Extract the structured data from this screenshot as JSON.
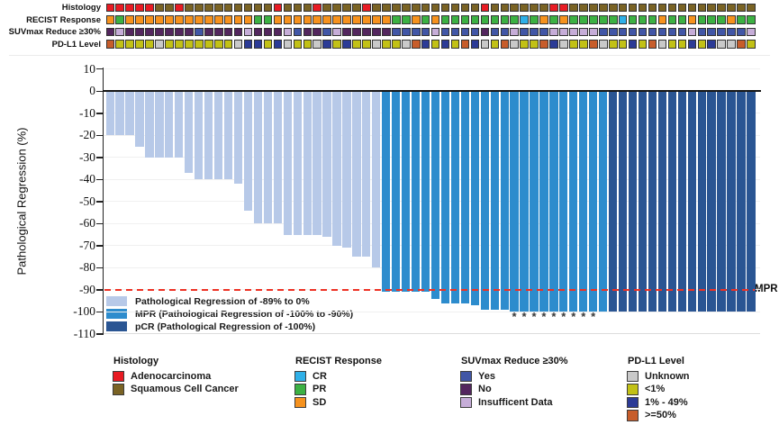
{
  "figure": {
    "y_axis": {
      "title": "Pathological Regression (%)",
      "ticks": [
        10,
        0,
        -10,
        -20,
        -30,
        -40,
        -50,
        -60,
        -70,
        -80,
        -90,
        -100,
        -110
      ]
    },
    "mpr_threshold": {
      "value": -90,
      "label": "MPR",
      "color": "#ee3124"
    }
  },
  "chart_data": {
    "type": "bar",
    "ylabel": "Pathological Regression (%)",
    "ylim": [
      -110,
      10
    ],
    "gridlines": true,
    "n_patients": 66,
    "values": [
      -20,
      -20,
      -20,
      -25,
      -30,
      -30,
      -30,
      -30,
      -37,
      -40,
      -40,
      -40,
      -40,
      -42,
      -54,
      -60,
      -60,
      -60,
      -65,
      -65,
      -65,
      -65,
      -66,
      -70,
      -71,
      -75,
      -75,
      -80,
      -91,
      -91,
      -91,
      -91,
      -91,
      -94,
      -96,
      -96,
      -96,
      -97,
      -99,
      -99,
      -99,
      -100,
      -100,
      -100,
      -100,
      -100,
      -100,
      -100,
      -100,
      -100,
      -100,
      -100,
      -100,
      -100,
      -100,
      -100,
      -100,
      -100,
      -100,
      -100,
      -100,
      -100,
      -100,
      -100,
      -100,
      -100
    ],
    "bar_categories": [
      "light",
      "light",
      "light",
      "light",
      "light",
      "light",
      "light",
      "light",
      "light",
      "light",
      "light",
      "light",
      "light",
      "light",
      "light",
      "light",
      "light",
      "light",
      "light",
      "light",
      "light",
      "light",
      "light",
      "light",
      "light",
      "light",
      "light",
      "light",
      "mpr",
      "mpr",
      "mpr",
      "mpr",
      "mpr",
      "mpr",
      "mpr",
      "mpr",
      "mpr",
      "mpr",
      "mpr",
      "mpr",
      "mpr",
      "mpr",
      "mpr",
      "mpr",
      "mpr",
      "mpr",
      "mpr",
      "mpr",
      "mpr",
      "mpr",
      "mpr",
      "pcr",
      "pcr",
      "pcr",
      "pcr",
      "pcr",
      "pcr",
      "pcr",
      "pcr",
      "pcr",
      "pcr",
      "pcr",
      "pcr",
      "pcr",
      "pcr",
      "pcr"
    ],
    "category_colors": {
      "light": "#b7c9e8",
      "mpr": "#2d8ccd",
      "pcr": "#2a5593"
    },
    "asterisk_bars": [
      42,
      43,
      44,
      45,
      46,
      47,
      48,
      49,
      50
    ],
    "reference_line": {
      "y": -90,
      "label": "MPR"
    },
    "annotation_tracks": [
      {
        "label": "Histology",
        "colors": {
          "A": "#e81b23",
          "S": "#7a6324"
        },
        "values": [
          "A",
          "A",
          "A",
          "A",
          "A",
          "S",
          "S",
          "A",
          "S",
          "S",
          "S",
          "S",
          "S",
          "S",
          "S",
          "S",
          "S",
          "A",
          "S",
          "S",
          "S",
          "A",
          "S",
          "S",
          "S",
          "S",
          "A",
          "S",
          "S",
          "S",
          "S",
          "S",
          "S",
          "S",
          "S",
          "S",
          "S",
          "S",
          "A",
          "S",
          "S",
          "S",
          "S",
          "S",
          "S",
          "A",
          "A",
          "S",
          "S",
          "S",
          "S",
          "S",
          "S",
          "S",
          "S",
          "S",
          "S",
          "S",
          "S",
          "S",
          "S",
          "S",
          "S",
          "S",
          "S",
          "S"
        ]
      },
      {
        "label": "RECIST Response",
        "colors": {
          "CR": "#2fb0e8",
          "PR": "#3cb143",
          "SD": "#f6921e"
        },
        "values": [
          "SD",
          "PR",
          "SD",
          "SD",
          "SD",
          "SD",
          "SD",
          "SD",
          "SD",
          "SD",
          "SD",
          "SD",
          "SD",
          "SD",
          "SD",
          "PR",
          "PR",
          "SD",
          "SD",
          "SD",
          "SD",
          "SD",
          "SD",
          "SD",
          "SD",
          "SD",
          "SD",
          "SD",
          "SD",
          "PR",
          "PR",
          "SD",
          "PR",
          "SD",
          "PR",
          "PR",
          "PR",
          "PR",
          "PR",
          "PR",
          "PR",
          "PR",
          "CR",
          "PR",
          "SD",
          "PR",
          "SD",
          "PR",
          "PR",
          "PR",
          "PR",
          "PR",
          "CR",
          "PR",
          "PR",
          "PR",
          "SD",
          "PR",
          "PR",
          "SD",
          "PR",
          "PR",
          "PR",
          "SD",
          "PR",
          "PR"
        ]
      },
      {
        "label": "SUVmax Reduce ≥30%",
        "colors": {
          "Y": "#4156a6",
          "N": "#53265e",
          "I": "#c6add8"
        },
        "values": [
          "N",
          "I",
          "N",
          "N",
          "N",
          "N",
          "N",
          "N",
          "N",
          "Y",
          "N",
          "N",
          "N",
          "N",
          "I",
          "N",
          "N",
          "N",
          "I",
          "Y",
          "N",
          "N",
          "Y",
          "I",
          "N",
          "N",
          "N",
          "N",
          "N",
          "Y",
          "Y",
          "Y",
          "Y",
          "I",
          "Y",
          "Y",
          "Y",
          "Y",
          "N",
          "Y",
          "Y",
          "I",
          "Y",
          "Y",
          "Y",
          "I",
          "I",
          "I",
          "I",
          "I",
          "Y",
          "Y",
          "Y",
          "Y",
          "Y",
          "Y",
          "Y",
          "Y",
          "Y",
          "I",
          "Y",
          "Y",
          "Y",
          "Y",
          "Y",
          "I"
        ]
      },
      {
        "label": "PD-L1 Level",
        "colors": {
          "U": "#c9c9c9",
          "L": "#c2c116",
          "M": "#2c3b96",
          "H": "#c75d2b"
        },
        "values": [
          "H",
          "L",
          "L",
          "L",
          "L",
          "U",
          "L",
          "L",
          "L",
          "L",
          "L",
          "L",
          "L",
          "U",
          "M",
          "M",
          "L",
          "M",
          "U",
          "L",
          "L",
          "U",
          "M",
          "L",
          "M",
          "L",
          "L",
          "U",
          "L",
          "L",
          "U",
          "H",
          "M",
          "L",
          "M",
          "L",
          "H",
          "M",
          "U",
          "L",
          "H",
          "U",
          "L",
          "L",
          "H",
          "M",
          "U",
          "L",
          "L",
          "H",
          "U",
          "L",
          "L",
          "M",
          "L",
          "H",
          "U",
          "L",
          "L",
          "M",
          "L",
          "M",
          "U",
          "U",
          "H",
          "L"
        ]
      }
    ]
  },
  "plot_legend": {
    "items": [
      {
        "label": "Pathological Regression of -89% to 0%",
        "color": "#b7c9e8"
      },
      {
        "label": "MPR (Pathological Regression of -100% to -90%)",
        "color": "#2d8ccd"
      },
      {
        "label": "pCR (Pathological Regression of -100%)",
        "color": "#2a5593"
      }
    ]
  },
  "bottom_legends": [
    {
      "title": "Histology",
      "items": [
        {
          "label": "Adenocarcinoma",
          "color": "#e81b23"
        },
        {
          "label": "Squamous Cell Cancer",
          "color": "#7a6324"
        }
      ]
    },
    {
      "title": "RECIST Response",
      "items": [
        {
          "label": "CR",
          "color": "#2fb0e8"
        },
        {
          "label": "PR",
          "color": "#3cb143"
        },
        {
          "label": "SD",
          "color": "#f6921e"
        }
      ]
    },
    {
      "title": "SUVmax Reduce ≥30%",
      "items": [
        {
          "label": "Yes",
          "color": "#4156a6"
        },
        {
          "label": "No",
          "color": "#53265e"
        },
        {
          "label": "Insufficent Data",
          "color": "#c6add8"
        }
      ]
    },
    {
      "title": "PD-L1 Level",
      "items": [
        {
          "label": "Unknown",
          "color": "#c9c9c9"
        },
        {
          "label": "<1%",
          "color": "#c2c116"
        },
        {
          "label": "1% - 49%",
          "color": "#2c3b96"
        },
        {
          "label": ">=50%",
          "color": "#c75d2b"
        }
      ]
    }
  ]
}
